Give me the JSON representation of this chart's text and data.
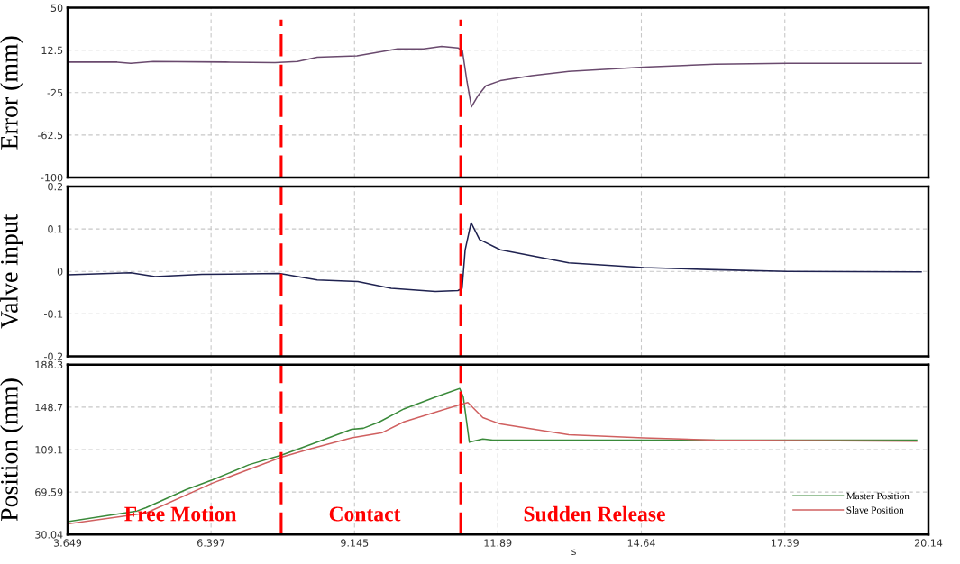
{
  "chart_data": [
    {
      "type": "line",
      "ylabel": "Error (mm)",
      "xlim": [
        3.649,
        20.14
      ],
      "xticks": [
        3.649,
        6.397,
        9.145,
        11.89,
        14.64,
        17.39,
        20.14
      ],
      "ylim": [
        -100,
        50
      ],
      "yticks": [
        -100,
        -62.5,
        -25,
        12.5,
        50
      ],
      "grid": true,
      "tick_labels": "y",
      "line_style": "solid",
      "series": [
        {
          "color": "#6a4a6e",
          "x": [
            3.649,
            4.599,
            4.858,
            5.29,
            6.671,
            7.621,
            8.052,
            8.432,
            9.192,
            9.969,
            10.47,
            10.815,
            11.126,
            11.212,
            11.299,
            11.385,
            11.506,
            11.661,
            11.938,
            12.542,
            13.25,
            14.683,
            16.048,
            17.429,
            20.002
          ],
          "values": [
            2,
            2,
            1,
            2.5,
            2,
            1.5,
            2.5,
            6.3,
            7.4,
            13.7,
            13.7,
            15.9,
            14.5,
            12,
            -15,
            -37.6,
            -28,
            -19,
            -14.5,
            -10,
            -6.3,
            -2.5,
            0.2,
            1,
            1
          ]
        }
      ],
      "ref_lines": [
        {
          "axis": "x",
          "value": 7.74,
          "color": "#ff0000",
          "line_style": "dashed"
        },
        {
          "axis": "x",
          "value": 11.18,
          "color": "#ff0000",
          "line_style": "dashed"
        }
      ]
    },
    {
      "type": "line",
      "ylabel": "Valve input",
      "xlim": [
        3.649,
        20.14
      ],
      "xticks": [
        3.649,
        6.397,
        9.145,
        11.89,
        14.64,
        17.39,
        20.14
      ],
      "ylim": [
        -0.2,
        0.2
      ],
      "yticks": [
        -0.2,
        -0.1,
        0,
        0.1,
        0.2
      ],
      "grid": true,
      "tick_labels": "y",
      "line_style": "solid",
      "series": [
        {
          "color": "#1f2250",
          "x": [
            3.649,
            4.858,
            5.324,
            6.222,
            7.707,
            8.432,
            9.209,
            9.848,
            10.694,
            11.126,
            11.206,
            11.264,
            11.378,
            11.541,
            11.938,
            13.25,
            14.683,
            16.048,
            17.429,
            20.002
          ],
          "values": [
            -0.008,
            -0.003,
            -0.012,
            -0.007,
            -0.005,
            -0.02,
            -0.024,
            -0.04,
            -0.047,
            -0.045,
            -0.04,
            0.05,
            0.115,
            0.075,
            0.051,
            0.02,
            0.009,
            0.004,
            0.0,
            -0.001
          ]
        }
      ],
      "ref_lines": [
        {
          "axis": "x",
          "value": 7.74,
          "color": "#ff0000",
          "line_style": "dashed"
        },
        {
          "axis": "x",
          "value": 11.18,
          "color": "#ff0000",
          "line_style": "dashed"
        }
      ]
    },
    {
      "type": "line",
      "xlabel": "s",
      "ylabel": "Position (mm)",
      "xlim": [
        3.649,
        20.14
      ],
      "xticks": [
        3.649,
        6.397,
        9.145,
        11.89,
        14.64,
        17.39,
        20.14
      ],
      "ylim": [
        30.04,
        188.3
      ],
      "yticks": [
        30.04,
        69.59,
        109.1,
        148.7,
        188.3
      ],
      "grid": true,
      "legend": "bottom right",
      "line_style": "solid",
      "series": [
        {
          "name": "Master Position",
          "color": "#3a8a3a",
          "x": [
            3.649,
            4.979,
            5.151,
            5.928,
            6.429,
            7.12,
            7.742,
            8.311,
            9.088,
            9.313,
            9.624,
            10.09,
            10.694,
            11.161,
            11.23,
            11.345,
            11.603,
            11.794,
            19.62,
            19.915
          ],
          "values": [
            42,
            52,
            55,
            72,
            81,
            95,
            104,
            114,
            128,
            129,
            135,
            147,
            158,
            166,
            158,
            116,
            119,
            118,
            118,
            118
          ]
        },
        {
          "name": "Slave Position",
          "color": "#d06060",
          "x": [
            3.649,
            5.151,
            6.429,
            7.742,
            8.311,
            9.088,
            9.676,
            10.09,
            11.161,
            11.316,
            11.603,
            11.938,
            13.25,
            14.683,
            16.048,
            19.915
          ],
          "values": [
            40,
            50,
            78,
            102,
            110,
            120,
            125,
            135,
            151,
            153,
            139,
            133,
            123,
            120,
            118,
            117
          ]
        }
      ],
      "ref_lines": [
        {
          "axis": "x",
          "value": 7.74,
          "color": "#ff0000",
          "line_style": "dashed"
        },
        {
          "axis": "x",
          "value": 11.18,
          "color": "#ff0000",
          "line_style": "dashed"
        }
      ],
      "annotations": [
        "Free Motion",
        "Contact",
        "Sudden Release"
      ]
    }
  ]
}
